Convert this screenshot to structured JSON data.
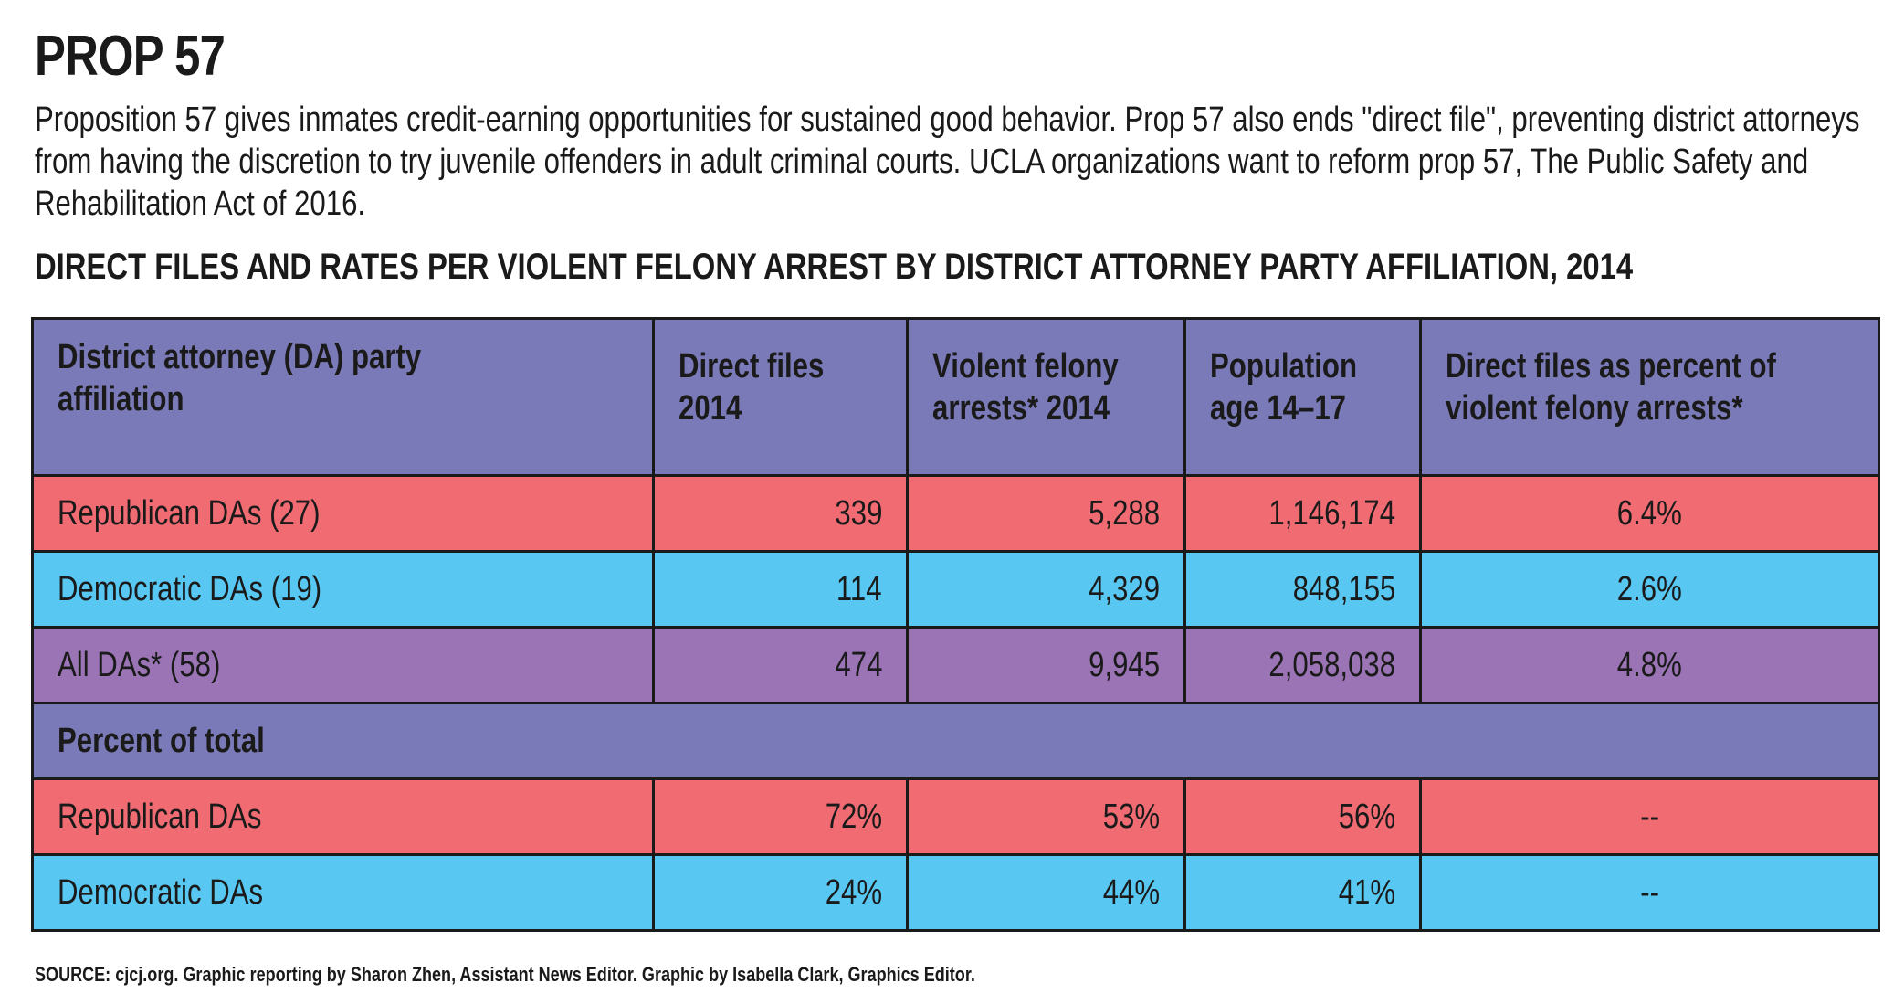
{
  "title": "PROP 57",
  "intro": "Proposition 57 gives inmates credit-earning opportunities for sustained good behavior. Prop 57 also ends \"direct file\", preventing district attorneys from having the discretion to try juvenile offenders in adult criminal courts. UCLA organizations want to reform prop 57, The Public Safety and Rehabilitation Act of 2016.",
  "colors": {
    "header": "#7a7ab8",
    "republican": "#f06b72",
    "democratic": "#58c8f2",
    "all": "#9b74b6"
  },
  "chart_data": {
    "type": "table",
    "title": "DIRECT FILES AND RATES PER VIOLENT FELONY ARREST BY DISTRICT ATTORNEY PARTY AFFILIATION, 2014",
    "columns": [
      "District attorney (DA) party affiliation",
      "Direct files 2014",
      "Violent felony arrests* 2014",
      "Population age 14–17",
      "Direct files as percent of violent felony arrests*"
    ],
    "rows": [
      {
        "label": "Republican DAs (27)",
        "direct_files": "339",
        "violent_felony_arrests": "5,288",
        "population": "1,146,174",
        "percent": "6.4%"
      },
      {
        "label": "Democratic DAs (19)",
        "direct_files": "114",
        "violent_felony_arrests": "4,329",
        "population": "848,155",
        "percent": "2.6%"
      },
      {
        "label": "All DAs* (58)",
        "direct_files": "474",
        "violent_felony_arrests": "9,945",
        "population": "2,058,038",
        "percent": "4.8%"
      }
    ],
    "section_label": "Percent of total",
    "percent_rows": [
      {
        "label": "Republican DAs",
        "direct_files": "72%",
        "violent_felony_arrests": "53%",
        "population": "56%",
        "percent": "--"
      },
      {
        "label": "Democratic DAs",
        "direct_files": "24%",
        "violent_felony_arrests": "44%",
        "population": "41%",
        "percent": "--"
      }
    ]
  },
  "source": "SOURCE: cjcj.org. Graphic reporting by Sharon Zhen, Assistant News Editor. Graphic by Isabella Clark, Graphics Editor."
}
